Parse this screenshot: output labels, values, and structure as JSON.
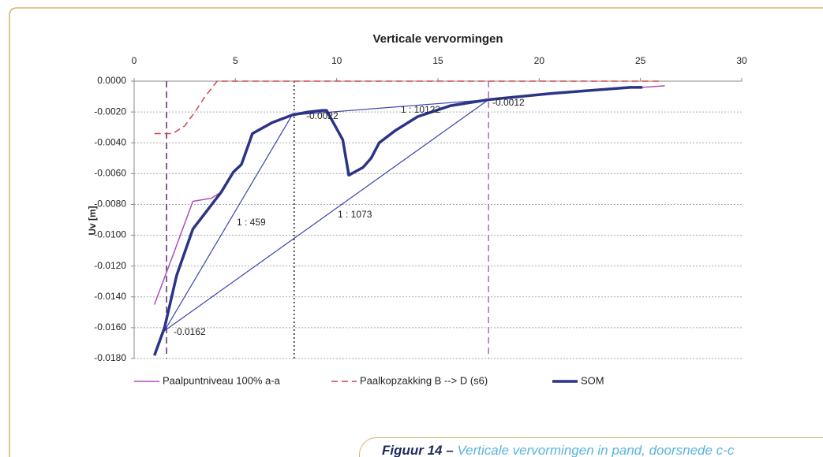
{
  "chart_data": {
    "type": "line",
    "title": "Verticale vervormingen",
    "ylabel": "Uv [m]",
    "xlim": [
      0,
      30
    ],
    "xticks": [
      0,
      5,
      10,
      15,
      20,
      25,
      30
    ],
    "x_axis_position": "top",
    "ylim": [
      -0.018,
      0
    ],
    "yticks": [
      {
        "value": 0,
        "label": "0.0000"
      },
      {
        "value": -0.002,
        "label": "-0.0020"
      },
      {
        "value": -0.004,
        "label": "-0.0040"
      },
      {
        "value": -0.006,
        "label": "-0.0060"
      },
      {
        "value": -0.008,
        "label": "-0.0080"
      },
      {
        "value": -0.01,
        "label": "-0.0100"
      },
      {
        "value": -0.012,
        "label": "-0.0120"
      },
      {
        "value": -0.014,
        "label": "-0.0140"
      },
      {
        "value": -0.016,
        "label": "-0.0160"
      },
      {
        "value": -0.018,
        "label": "-0.0180"
      }
    ],
    "grid": true,
    "legend": "bottom",
    "series": [
      {
        "name": "Paalpuntniveau 100% a-a",
        "color": "#b04cb8",
        "style": "solid",
        "width": 1.5,
        "x": [
          1,
          2,
          2.9,
          3.8,
          4.3,
          4.9,
          5.3,
          5.84,
          6.8,
          7.8,
          8.6,
          9.3,
          9.5,
          10.3,
          10.6,
          11.3,
          11.7,
          12.1,
          12.9,
          14,
          15.6,
          17.5,
          20.6,
          24.5,
          25.1,
          26.2
        ],
        "values": [
          -0.0145,
          -0.011,
          -0.0078,
          -0.0076,
          -0.0072,
          -0.0059,
          -0.0054,
          -0.0034,
          -0.0027,
          -0.0022,
          -0.002,
          -0.0019,
          -0.0019,
          -0.0038,
          -0.0061,
          -0.0056,
          -0.005,
          -0.004,
          -0.0032,
          -0.0023,
          -0.0016,
          -0.0012,
          -0.0008,
          -0.0004,
          -0.0004,
          -0.0003
        ]
      },
      {
        "name": "Paalkopzakking B --> D (s6)",
        "color": "#d2454f",
        "style": "dashed",
        "width": 1.5,
        "x": [
          1,
          1.9,
          2.5,
          3,
          3.5,
          4.1,
          26
        ],
        "values": [
          -0.0034,
          -0.0034,
          -0.0029,
          -0.002,
          -0.001,
          0,
          0
        ]
      },
      {
        "name": "SOM",
        "color": "#2b3486",
        "style": "solid",
        "width": 3.5,
        "x": [
          1,
          1.5,
          2.1,
          2.9,
          3.6,
          4.3,
          4.9,
          5.3,
          5.84,
          6.8,
          7.8,
          8.6,
          9.3,
          9.5,
          10.3,
          10.6,
          11.3,
          11.7,
          12.1,
          12.9,
          14,
          15.6,
          17.5,
          20.6,
          24.5,
          25.1
        ],
        "values": [
          -0.0178,
          -0.016,
          -0.0126,
          -0.0096,
          -0.0084,
          -0.0072,
          -0.0059,
          -0.0054,
          -0.0034,
          -0.0027,
          -0.0022,
          -0.002,
          -0.0019,
          -0.0019,
          -0.0038,
          -0.0061,
          -0.0056,
          -0.005,
          -0.004,
          -0.0032,
          -0.0023,
          -0.0016,
          -0.0012,
          -0.0008,
          -0.0004,
          -0.0004
        ]
      }
    ],
    "guide_lines": [
      {
        "x": [
          1.5,
          7.8
        ],
        "values": [
          -0.0162,
          -0.0022
        ],
        "color": "#3a45a8"
      },
      {
        "x": [
          1.5,
          17.5
        ],
        "values": [
          -0.0162,
          -0.0012
        ],
        "color": "#3a45a8"
      },
      {
        "x": [
          7.8,
          17.5
        ],
        "values": [
          -0.0022,
          -0.0012
        ],
        "color": "#3a45a8"
      }
    ],
    "vlines": [
      {
        "x": 1.6,
        "color": "#5b2a7a",
        "style": "dashed"
      },
      {
        "x": 7.9,
        "color": "#222222",
        "style": "dotted"
      },
      {
        "x": 17.5,
        "color": "#b06ab0",
        "style": "dashed"
      }
    ],
    "annotations": [
      "1 : 459",
      "1 : 1073",
      "1 : 10122",
      "-0.0022",
      "-0.0012",
      "-0.0162"
    ]
  },
  "caption": {
    "label": "Figuur 14 –",
    "text": "Verticale vervormingen in pand, doorsnede c-c"
  }
}
